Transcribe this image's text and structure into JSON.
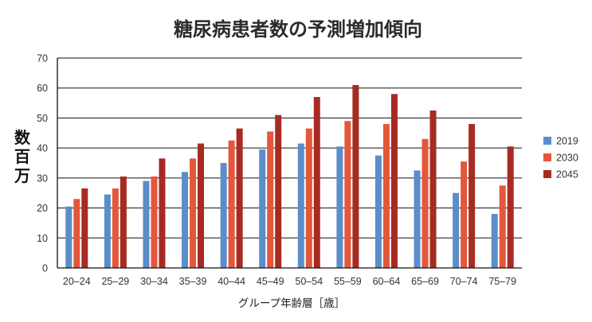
{
  "chart_data": {
    "type": "bar",
    "title": "糖尿病患者数の予測増加傾向",
    "xlabel": "グループ年齢層［歳］",
    "ylabel": "数百万",
    "ylim": [
      0,
      70
    ],
    "yticks": [
      0,
      10,
      20,
      30,
      40,
      50,
      60,
      70
    ],
    "grid": true,
    "legend_position": "right",
    "categories": [
      "20–24",
      "25–29",
      "30–34",
      "35–39",
      "40–44",
      "45–49",
      "50–54",
      "55–59",
      "60–64",
      "65–69",
      "70–74",
      "75–79"
    ],
    "series": [
      {
        "name": "2019",
        "color": "#5b8dc9",
        "values": [
          20.5,
          24.5,
          29,
          32,
          35,
          39.5,
          41.5,
          40.5,
          37.5,
          32.5,
          25,
          18
        ]
      },
      {
        "name": "2030",
        "color": "#e4573a",
        "values": [
          23,
          26.5,
          30.5,
          36.5,
          42.5,
          45.5,
          46.5,
          49,
          48,
          43,
          35.5,
          27.5
        ]
      },
      {
        "name": "2045",
        "color": "#a72b22",
        "values": [
          26.5,
          30.5,
          36.5,
          41.5,
          46.5,
          51,
          57,
          61,
          58,
          52.5,
          48,
          40.5
        ]
      }
    ]
  }
}
